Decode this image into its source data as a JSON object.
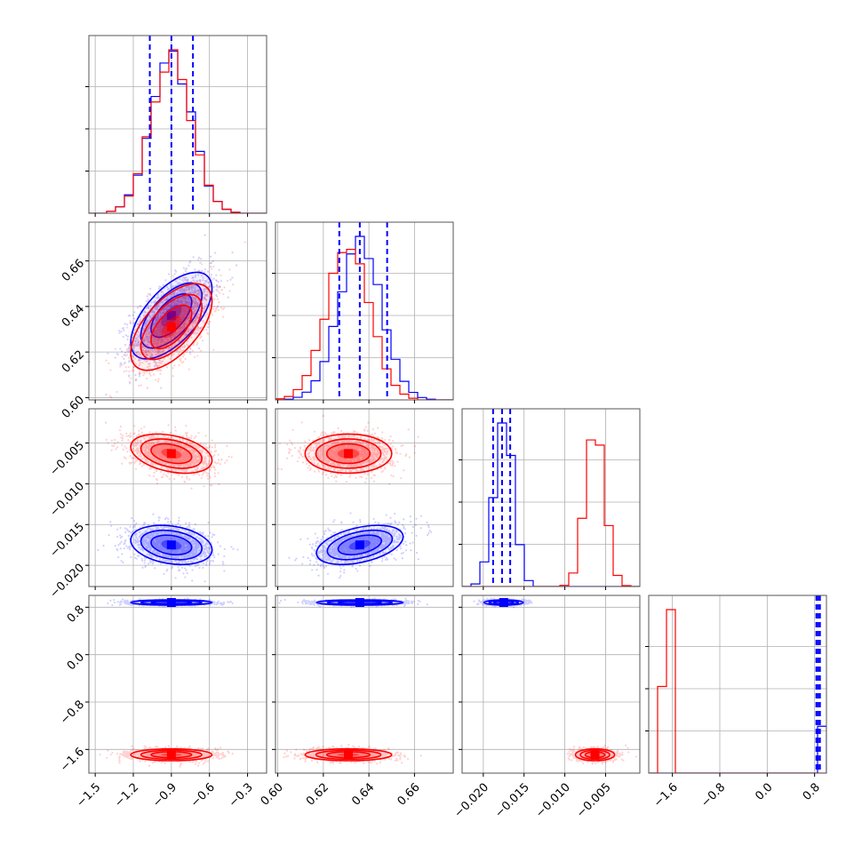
{
  "chart_data": {
    "type": "corner",
    "colors": {
      "series_a": "#0000ff",
      "series_b": "#ff0000"
    },
    "grid": true,
    "quantile_line_color": "#0000ff",
    "parameters": [
      {
        "ticks": [
          -1.5,
          -1.2,
          -0.9,
          -0.6,
          -0.3
        ],
        "tick_labels": [
          "−1.5",
          "−1.2",
          "−0.9",
          "−0.6",
          "−0.3"
        ],
        "range": [
          -1.55,
          -0.15
        ]
      },
      {
        "ticks": [
          0.6,
          0.62,
          0.64,
          0.66
        ],
        "tick_labels": [
          "0.60",
          "0.62",
          "0.64",
          "0.66"
        ],
        "range": [
          0.599,
          0.677
        ]
      },
      {
        "ticks": [
          -0.02,
          -0.015,
          -0.01,
          -0.005
        ],
        "tick_labels": [
          "−0.020",
          "−0.015",
          "−0.010",
          "−0.005"
        ],
        "range": [
          -0.0226,
          -0.0008
        ]
      },
      {
        "ticks": [
          -1.6,
          -0.8,
          0.0,
          0.8
        ],
        "tick_labels": [
          "−1.6",
          "−0.8",
          "0.0",
          "0.8"
        ],
        "range": [
          -2.0,
          1.0
        ]
      }
    ],
    "series": [
      {
        "color": "blue",
        "mean": [
          -0.9,
          0.636,
          -0.0175,
          0.88
        ],
        "std": [
          0.16,
          0.0095,
          0.0012,
          0.022
        ],
        "corr": [
          [
            0,
            1,
            0.62
          ],
          [
            0,
            2,
            -0.25
          ],
          [
            1,
            2,
            0.42
          ]
        ],
        "quantiles": [
          [
            -1.07,
            -0.9,
            -0.73
          ],
          [
            0.627,
            0.636,
            0.648
          ],
          [
            -0.0188,
            -0.0177,
            -0.0167
          ],
          [
            0.83,
            0.86,
            0.89
          ]
        ]
      },
      {
        "color": "red",
        "mean": [
          -0.9,
          0.631,
          -0.0063,
          -1.69
        ],
        "std": [
          0.16,
          0.0095,
          0.0012,
          0.05
        ],
        "corr": [
          [
            0,
            1,
            0.6
          ],
          [
            0,
            2,
            -0.35
          ],
          [
            1,
            2,
            0.0
          ]
        ]
      }
    ]
  }
}
